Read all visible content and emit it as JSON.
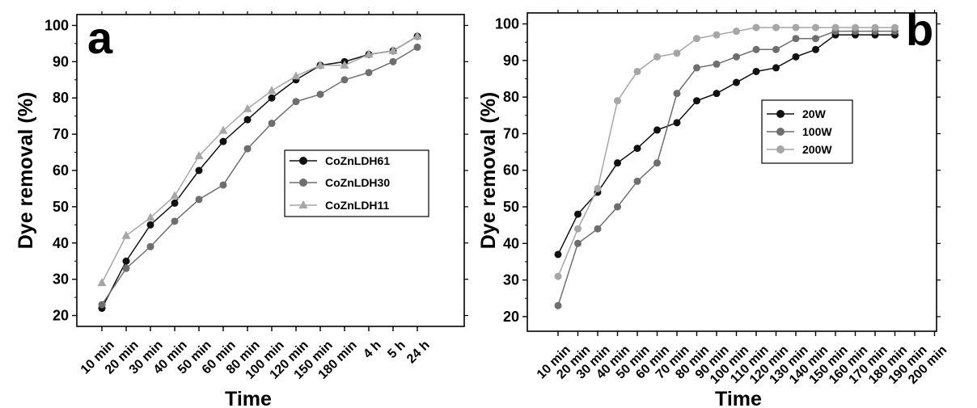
{
  "chart_data": [
    {
      "type": "line",
      "panel_label": "a",
      "xlabel": "Time",
      "ylabel": "Dye removal (%)",
      "categories": [
        "10 min",
        "20 min",
        "30 min",
        "40 min",
        "50 min",
        "60 min",
        "80 min",
        "100 min",
        "120 min",
        "150 min",
        "180 min",
        "4 h",
        "5 h",
        "24 h"
      ],
      "ylim": [
        17,
        103
      ],
      "yticks": [
        20,
        30,
        40,
        50,
        60,
        70,
        80,
        90,
        100
      ],
      "legend_position": "right",
      "series": [
        {
          "name": "CoZnLDH61",
          "marker": "circle",
          "color": "#111111",
          "values": [
            22,
            35,
            45,
            51,
            60,
            68,
            74,
            80,
            85,
            89,
            90,
            92,
            93,
            97
          ]
        },
        {
          "name": "CoZnLDH30",
          "marker": "circle",
          "color": "#6e6e6e",
          "values": [
            23,
            33,
            39,
            46,
            52,
            56,
            66,
            73,
            79,
            81,
            85,
            87,
            90,
            94
          ]
        },
        {
          "name": "CoZnLDH11",
          "marker": "triangle",
          "color": "#a6a6a6",
          "values": [
            29,
            42,
            47,
            53,
            64,
            71,
            77,
            82,
            86,
            89,
            89,
            92,
            93,
            97
          ]
        }
      ]
    },
    {
      "type": "line",
      "panel_label": "b",
      "xlabel": "Time",
      "ylabel": "Dye removal (%)",
      "categories": [
        "10 min",
        "20 min",
        "30 min",
        "40 min",
        "50 min",
        "60 min",
        "70 min",
        "80 min",
        "90 min",
        "100 min",
        "110 min",
        "120 min",
        "130 min",
        "140 min",
        "150 min",
        "160 min",
        "170 min",
        "180 min",
        "190 min",
        "200 min"
      ],
      "ylim": [
        16,
        103
      ],
      "yticks": [
        20,
        30,
        40,
        50,
        60,
        70,
        80,
        90,
        100
      ],
      "legend_position": "center",
      "series": [
        {
          "name": "20W",
          "marker": "circle",
          "color": "#111111",
          "values": [
            37,
            48,
            54,
            62,
            66,
            71,
            73,
            79,
            81,
            84,
            87,
            88,
            91,
            93,
            97,
            97,
            97,
            97,
            null,
            null
          ]
        },
        {
          "name": "100W",
          "marker": "circle",
          "color": "#6e6e6e",
          "values": [
            23,
            40,
            44,
            50,
            57,
            62,
            81,
            88,
            89,
            91,
            93,
            93,
            96,
            96,
            98,
            98,
            98,
            98,
            null,
            null
          ]
        },
        {
          "name": "200W",
          "marker": "circle",
          "color": "#a6a6a6",
          "values": [
            31,
            44,
            55,
            79,
            87,
            91,
            92,
            96,
            97,
            98,
            99,
            99,
            99,
            99,
            99,
            99,
            99,
            99,
            null,
            null
          ]
        }
      ]
    }
  ]
}
